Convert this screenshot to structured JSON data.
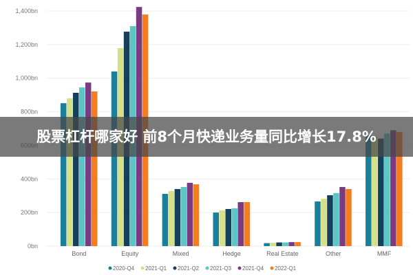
{
  "banner": {
    "text": "股票杠杆哪家好 前8个月快递业务量同比增长17.8%"
  },
  "chart_data": {
    "type": "bar",
    "title": "",
    "xlabel": "",
    "ylabel": "",
    "ylim": [
      0,
      1400
    ],
    "yticks": [
      0,
      200,
      400,
      600,
      800,
      1000,
      1200,
      1400
    ],
    "ytick_labels": [
      "0bn",
      "200bn",
      "400bn",
      "600bn",
      "800bn",
      "1,000bn",
      "1,200bn",
      "1,400bn"
    ],
    "grid": true,
    "legend_position": "bottom",
    "categories": [
      "Bond",
      "Equity",
      "Mixed",
      "Hedge",
      "Real Estate",
      "Other",
      "MMF"
    ],
    "series": [
      {
        "name": "2020-Q4",
        "color": "#1a7f9a",
        "values": [
          851,
          1040,
          311,
          200,
          18,
          266,
          660
        ]
      },
      {
        "name": "2021-Q1",
        "color": "#d4e08a",
        "values": [
          880,
          1179,
          327,
          213,
          20,
          282,
          650
        ]
      },
      {
        "name": "2021-Q2",
        "color": "#14405c",
        "values": [
          913,
          1277,
          340,
          221,
          22,
          303,
          640
        ]
      },
      {
        "name": "2021-Q3",
        "color": "#5cc6c6",
        "values": [
          945,
          1310,
          352,
          225,
          22,
          316,
          670
        ]
      },
      {
        "name": "2021-Q4",
        "color": "#7a3b82",
        "values": [
          974,
          1424,
          377,
          262,
          24,
          352,
          690
        ]
      },
      {
        "name": "2022-Q1",
        "color": "#f57c20",
        "values": [
          921,
          1379,
          368,
          262,
          24,
          340,
          680
        ]
      }
    ]
  }
}
